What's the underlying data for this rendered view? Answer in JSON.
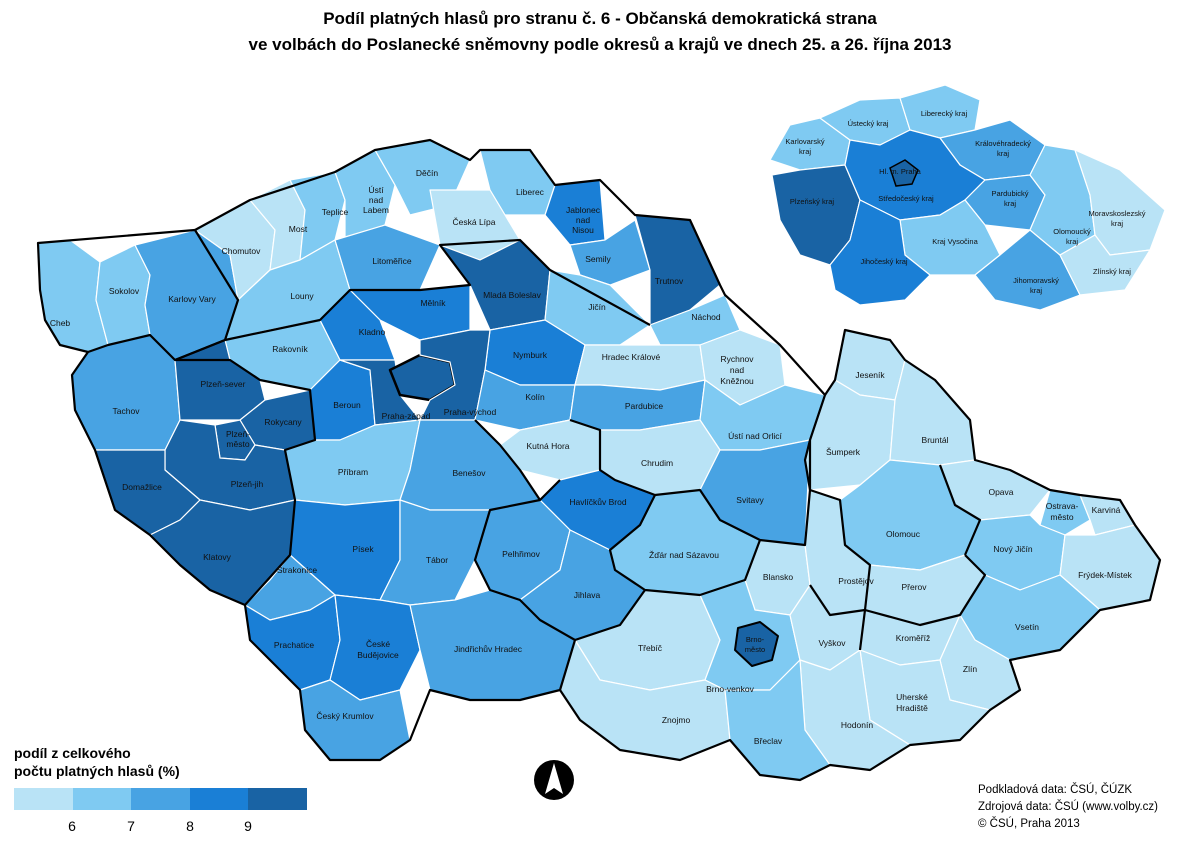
{
  "title_line1": "Podíl platných hlasů pro stranu č. 6 - Občanská demokratická strana",
  "title_line2": "ve volbách do Poslanecké sněmovny podle okresů a krajů ve dnech 25. a 26. října 2013",
  "legend": {
    "title_line1": "podíl z celkového",
    "title_line2": "počtu platných hlasů (%)",
    "classes": [
      "#b9e3f6",
      "#7fcaf2",
      "#48a3e3",
      "#1a7fd6",
      "#1963a4"
    ],
    "breaks": [
      "6",
      "7",
      "8",
      "9"
    ]
  },
  "credits": {
    "line1": "Podkladová data: ČSÚ, ČÚZK",
    "line2": "Zdrojová data: ČSÚ (www.volby.cz)",
    "line3": "© ČSÚ, Praha 2013"
  },
  "districts": {
    "cheb": "Cheb",
    "sokolov": "Sokolov",
    "karlovy_vary": "Karlovy Vary",
    "chomutov": "Chomutov",
    "most": "Most",
    "teplice": "Teplice",
    "usti_l1": "Ústí",
    "usti_l2": "nad",
    "usti_l3": "Labem",
    "decin": "Děčín",
    "liberec": "Liberec",
    "ceska_lipa": "Česká Lípa",
    "jablonec_l1": "Jablonec",
    "jablonec_l2": "nad",
    "jablonec_l3": "Nisou",
    "semily": "Semily",
    "trutnov": "Trutnov",
    "louny": "Louny",
    "litomerice": "Litoměřice",
    "melnik": "Mělník",
    "mlada_boleslav": "Mladá Boleslav",
    "jicin": "Jičín",
    "nachod": "Náchod",
    "rakovnik": "Rakovník",
    "kladno": "Kladno",
    "nymburk": "Nymburk",
    "hradec_kralove": "Hradec Králové",
    "rychnov_l1": "Rychnov",
    "rychnov_l2": "nad",
    "rychnov_l3": "Kněžnou",
    "tachov": "Tachov",
    "plzen_sever": "Plzeň-sever",
    "rokycany": "Rokycany",
    "plzen_mesto_l1": "Plzeň-",
    "plzen_mesto_l2": "město",
    "plzen_jih": "Plzeň-jih",
    "beroun": "Beroun",
    "praha_zapad": "Praha-západ",
    "praha_vychod": "Praha-východ",
    "kolin": "Kolín",
    "pardubice": "Pardubice",
    "usti_orlici": "Ústí nad Orlicí",
    "kutna_hora": "Kutná Hora",
    "chrudim": "Chrudim",
    "pribram": "Příbram",
    "benesov": "Benešov",
    "domazlice": "Domažlice",
    "klatovy": "Klatovy",
    "havlickuv_brod": "Havlíčkův Brod",
    "svitavy": "Svitavy",
    "jesenik": "Jeseník",
    "sumperk": "Šumperk",
    "bruntal": "Bruntál",
    "opava": "Opava",
    "ostrava_l1": "Ostrava-",
    "ostrava_l2": "město",
    "karvina": "Karviná",
    "olomouc": "Olomouc",
    "novy_jicin": "Nový Jičín",
    "frydek": "Frýdek-Místek",
    "pisek": "Písek",
    "tabor": "Tábor",
    "pelhrimov": "Pelhřimov",
    "zdar": "Žďár nad Sázavou",
    "strakonice": "Strakonice",
    "jihlava": "Jihlava",
    "blansko": "Blansko",
    "prostejov": "Prostějov",
    "prerov": "Přerov",
    "vsetin": "Vsetín",
    "prachatice": "Prachatice",
    "cb_l1": "České",
    "cb_l2": "Budějovice",
    "trebic": "Třebíč",
    "brno_mesto_l1": "Brno-",
    "brno_mesto_l2": "město",
    "brno_venkov": "Brno-venkov",
    "vyskov": "Vyškov",
    "kromeriz": "Kroměříž",
    "zlin": "Zlín",
    "jindrichuv": "Jindřichův Hradec",
    "znojmo": "Znojmo",
    "uh_l1": "Uherské",
    "uh_l2": "Hradiště",
    "hodonin": "Hodonín",
    "breclav": "Břeclav",
    "cesky_krumlov": "Český Krumlov"
  },
  "regions": {
    "karlovarsky_l1": "Karlovarský",
    "karlovarsky_l2": "kraj",
    "ustecky": "Ústecký kraj",
    "liberecky": "Liberecký kraj",
    "kralovehradecky_l1": "Královéhradecký",
    "kralovehradecky_l2": "kraj",
    "praha_l1": "Hl. m. Praha",
    "plzensky": "Plzeňský kraj",
    "stredocesky": "Středočeský kraj",
    "pardubicky_l1": "Pardubický",
    "pardubicky_l2": "kraj",
    "moravskoslezsky_l1": "Moravskoslezský",
    "moravskoslezsky_l2": "kraj",
    "vysocina": "Kraj Vysočina",
    "olomoucky_l1": "Olomoucký",
    "olomoucky_l2": "kraj",
    "jihocesky": "Jihočeský kraj",
    "jihomoravsky_l1": "Jihomoravský",
    "jihomoravsky_l2": "kraj",
    "zlinsky": "Zlínský kraj"
  }
}
